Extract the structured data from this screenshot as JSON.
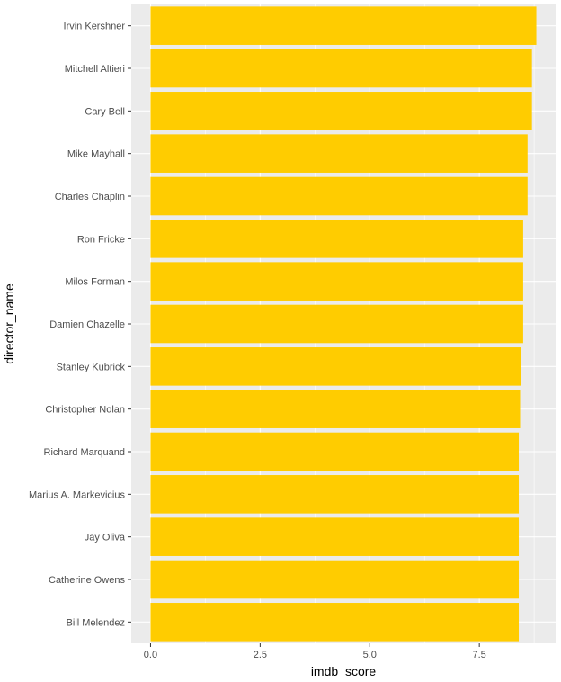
{
  "chart_data": {
    "type": "bar",
    "orientation": "horizontal",
    "xlabel": "imdb_score",
    "ylabel": "director_name",
    "categories": [
      "Irvin Kershner",
      "Mitchell Altieri",
      "Cary Bell",
      "Mike Mayhall",
      "Charles Chaplin",
      "Ron Fricke",
      "Milos Forman",
      "Damien Chazelle",
      "Stanley Kubrick",
      "Christopher Nolan",
      "Richard Marquand",
      "Marius A. Markevicius",
      "Jay Oliva",
      "Catherine Owens",
      "Bill Melendez"
    ],
    "values": [
      8.8,
      8.7,
      8.7,
      8.6,
      8.6,
      8.5,
      8.5,
      8.5,
      8.45,
      8.43,
      8.4,
      8.4,
      8.4,
      8.4,
      8.4
    ],
    "xlim": [
      -0.44,
      9.24
    ],
    "xticks": [
      0,
      2.5,
      5,
      7.5
    ],
    "xtick_labels": [
      "0.0",
      "2.5",
      "5.0",
      "7.5"
    ],
    "bar_color": "#FFCC00",
    "panel_background": "#EBEBEB",
    "grid_color": "#FFFFFF",
    "grid": true,
    "legend": "none"
  }
}
